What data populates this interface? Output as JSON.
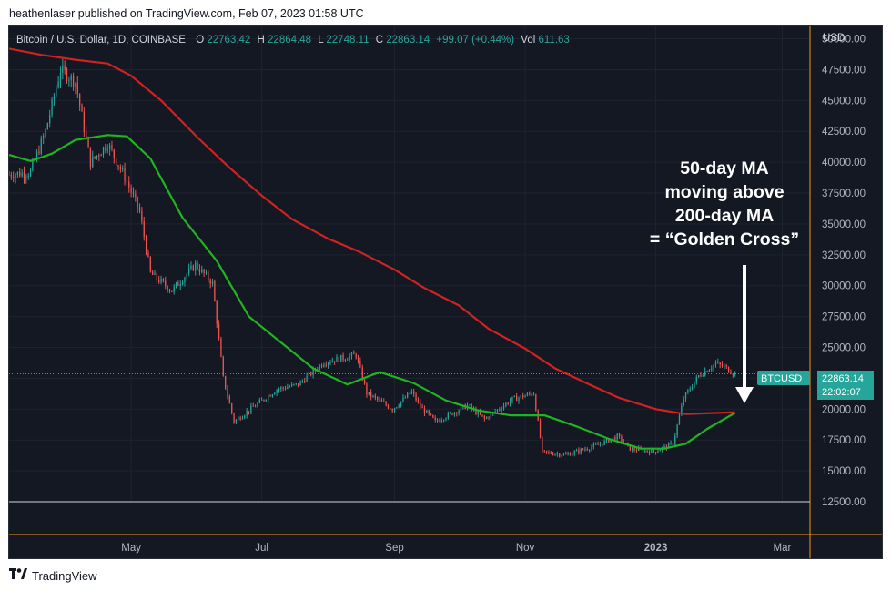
{
  "header": {
    "publisher_text": "heathenlaser published on TradingView.com, Feb 07, 2023 01:58 UTC"
  },
  "legend": {
    "symbol": "Bitcoin / U.S. Dollar, 1D, COINBASE",
    "o_label": "O",
    "o_value": "22763.42",
    "h_label": "H",
    "h_value": "22864.48",
    "l_label": "L",
    "l_value": "22748.11",
    "c_label": "C",
    "c_value": "22863.14",
    "change": "+99.07 (+0.44%)",
    "vol_label": "Vol",
    "vol_value": "611.63"
  },
  "footer": {
    "brand": "TradingView",
    "logo_icon": "tradingview-logo-icon"
  },
  "price_label": {
    "ticker": "BTCUSD",
    "price": "22863.14",
    "countdown": "22:02:07"
  },
  "annotation": {
    "lines": [
      "50-day MA",
      "moving above",
      "200-day MA",
      "= “Golden Cross”"
    ],
    "arrow_icon": "down-arrow-icon"
  },
  "colors": {
    "background": "#141823",
    "grid": "#1f2330",
    "up": "#26a69a",
    "down": "#ef5350",
    "ma50": "#1fb51f",
    "ma200": "#d12121",
    "axis_text": "#b2b5be",
    "price_line": "#26a69a",
    "label_bg": "#26a69a",
    "accent_border": "#f7931a"
  },
  "chart_data": {
    "type": "candlestick",
    "y_axis_unit": "USD",
    "ylim": [
      12500,
      51000
    ],
    "y_ticks": [
      12500,
      15000,
      17500,
      20000,
      22500,
      25000,
      27500,
      30000,
      32500,
      35000,
      37500,
      40000,
      42500,
      45000,
      47500,
      50000
    ],
    "y_tick_labels": [
      "12500.00",
      "15000.00",
      "17500.00",
      "20000.00",
      "22500.00",
      "25000.00",
      "27500.00",
      "30000.00",
      "32500.00",
      "35000.00",
      "37500.00",
      "40000.00",
      "42500.00",
      "45000.00",
      "47500.00",
      "50000.00"
    ],
    "x_range": [
      "2022-03-05",
      "2023-03-14"
    ],
    "x_ticks": [
      {
        "date": "2022-05-01",
        "label": "May"
      },
      {
        "date": "2022-07-01",
        "label": "Jul"
      },
      {
        "date": "2022-09-01",
        "label": "Sep"
      },
      {
        "date": "2022-11-01",
        "label": "Nov"
      },
      {
        "date": "2023-01-01",
        "label": "2023"
      },
      {
        "date": "2023-03-01",
        "label": "Mar"
      }
    ],
    "last_close": 22863.14,
    "close_path": [
      [
        "2022-03-05",
        39000
      ],
      [
        "2022-03-15",
        39200
      ],
      [
        "2022-03-22",
        42500
      ],
      [
        "2022-03-29",
        47500
      ],
      [
        "2022-04-05",
        46500
      ],
      [
        "2022-04-12",
        40000
      ],
      [
        "2022-04-20",
        41500
      ],
      [
        "2022-04-28",
        38800
      ],
      [
        "2022-05-05",
        36000
      ],
      [
        "2022-05-10",
        31000
      ],
      [
        "2022-05-20",
        29600
      ],
      [
        "2022-05-31",
        31700
      ],
      [
        "2022-06-08",
        30200
      ],
      [
        "2022-06-13",
        22500
      ],
      [
        "2022-06-18",
        19000
      ],
      [
        "2022-06-28",
        20300
      ],
      [
        "2022-07-08",
        21600
      ],
      [
        "2022-07-18",
        22000
      ],
      [
        "2022-07-30",
        23800
      ],
      [
        "2022-08-14",
        24400
      ],
      [
        "2022-08-19",
        21300
      ],
      [
        "2022-08-31",
        20000
      ],
      [
        "2022-09-09",
        21400
      ],
      [
        "2022-09-13",
        20200
      ],
      [
        "2022-09-20",
        19000
      ],
      [
        "2022-10-05",
        20300
      ],
      [
        "2022-10-13",
        19200
      ],
      [
        "2022-10-26",
        20800
      ],
      [
        "2022-11-05",
        21300
      ],
      [
        "2022-11-09",
        16500
      ],
      [
        "2022-11-20",
        16300
      ],
      [
        "2022-12-05",
        17100
      ],
      [
        "2022-12-14",
        17800
      ],
      [
        "2022-12-20",
        16800
      ],
      [
        "2022-12-31",
        16550
      ],
      [
        "2023-01-09",
        17200
      ],
      [
        "2023-01-14",
        20900
      ],
      [
        "2023-01-21",
        22700
      ],
      [
        "2023-01-29",
        23700
      ],
      [
        "2023-02-02",
        23400
      ],
      [
        "2023-02-07",
        22863
      ]
    ],
    "series": [
      {
        "name": "",
        "role": "50-day MA",
        "color": "#1fb51f",
        "points": [
          [
            "2022-03-05",
            40600
          ],
          [
            "2022-03-15",
            40100
          ],
          [
            "2022-03-25",
            40700
          ],
          [
            "2022-04-05",
            41800
          ],
          [
            "2022-04-20",
            42200
          ],
          [
            "2022-04-29",
            42100
          ],
          [
            "2022-05-10",
            40300
          ],
          [
            "2022-05-25",
            35500
          ],
          [
            "2022-06-10",
            32000
          ],
          [
            "2022-06-25",
            27500
          ],
          [
            "2022-07-10",
            25400
          ],
          [
            "2022-07-25",
            23300
          ],
          [
            "2022-08-10",
            22000
          ],
          [
            "2022-08-25",
            23000
          ],
          [
            "2022-09-10",
            22100
          ],
          [
            "2022-09-25",
            20700
          ],
          [
            "2022-10-10",
            19900
          ],
          [
            "2022-10-25",
            19500
          ],
          [
            "2022-11-10",
            19500
          ],
          [
            "2022-11-25",
            18600
          ],
          [
            "2022-12-10",
            17600
          ],
          [
            "2022-12-25",
            16800
          ],
          [
            "2023-01-05",
            16800
          ],
          [
            "2023-01-15",
            17200
          ],
          [
            "2023-01-25",
            18400
          ],
          [
            "2023-02-07",
            19700
          ]
        ]
      },
      {
        "name": "",
        "role": "200-day MA",
        "color": "#d12121",
        "points": [
          [
            "2022-03-05",
            49200
          ],
          [
            "2022-03-20",
            48700
          ],
          [
            "2022-04-05",
            48300
          ],
          [
            "2022-04-20",
            48000
          ],
          [
            "2022-05-01",
            47000
          ],
          [
            "2022-05-15",
            45000
          ],
          [
            "2022-06-01",
            42000
          ],
          [
            "2022-06-15",
            39700
          ],
          [
            "2022-07-01",
            37300
          ],
          [
            "2022-07-15",
            35400
          ],
          [
            "2022-08-01",
            33800
          ],
          [
            "2022-08-15",
            32800
          ],
          [
            "2022-09-01",
            31300
          ],
          [
            "2022-09-15",
            29800
          ],
          [
            "2022-10-01",
            28400
          ],
          [
            "2022-10-15",
            26500
          ],
          [
            "2022-11-01",
            24900
          ],
          [
            "2022-11-15",
            23300
          ],
          [
            "2022-12-01",
            22000
          ],
          [
            "2022-12-15",
            20900
          ],
          [
            "2023-01-01",
            20000
          ],
          [
            "2023-01-15",
            19600
          ],
          [
            "2023-02-07",
            19750
          ]
        ]
      }
    ]
  }
}
